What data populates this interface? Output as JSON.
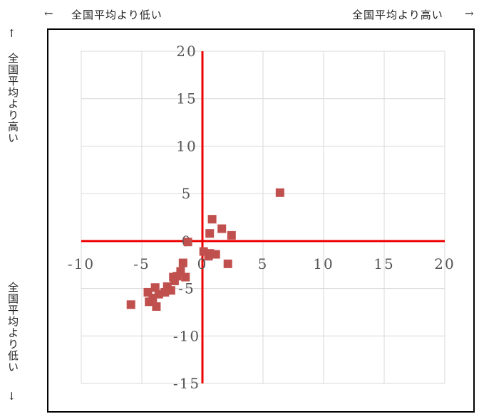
{
  "labels": {
    "left_arrow": "←",
    "top_left": "全国平均より低い",
    "top_right": "全国平均より高い",
    "right_arrow": "→",
    "up_arrow": "↑",
    "side_top": "全国平均より高い",
    "side_bottom": "全国平均より低い",
    "down_arrow": "↓"
  },
  "chart_data": {
    "type": "scatter",
    "title": "",
    "xlabel": "",
    "ylabel": "",
    "xlim": [
      -10,
      20
    ],
    "ylim": [
      -15,
      20
    ],
    "x_ticks": [
      -10,
      -5,
      0,
      5,
      10,
      15,
      20
    ],
    "y_ticks": [
      -15,
      -10,
      -5,
      0,
      5,
      10,
      15,
      20
    ],
    "grid": true,
    "axis_line_color": "#ee0000",
    "marker_color": "#c0504d",
    "points": [
      {
        "x": 6.4,
        "y": 5.1
      },
      {
        "x": 0.8,
        "y": 2.3
      },
      {
        "x": 1.6,
        "y": 1.3
      },
      {
        "x": 2.4,
        "y": 0.6
      },
      {
        "x": 0.6,
        "y": 0.8
      },
      {
        "x": -1.2,
        "y": -0.1
      },
      {
        "x": 0.1,
        "y": -1.1
      },
      {
        "x": 0.6,
        "y": -1.3
      },
      {
        "x": 1.1,
        "y": -1.4
      },
      {
        "x": 0.5,
        "y": -1.6
      },
      {
        "x": 2.1,
        "y": -2.4
      },
      {
        "x": -1.6,
        "y": -2.3
      },
      {
        "x": -1.8,
        "y": -3.2
      },
      {
        "x": -1.4,
        "y": -3.8
      },
      {
        "x": -2.1,
        "y": -3.7
      },
      {
        "x": -2.4,
        "y": -3.8
      },
      {
        "x": -2.3,
        "y": -4.2
      },
      {
        "x": -2.6,
        "y": -5.2
      },
      {
        "x": -2.9,
        "y": -4.8
      },
      {
        "x": -3.1,
        "y": -5.4
      },
      {
        "x": -3.6,
        "y": -5.6
      },
      {
        "x": -3.9,
        "y": -4.9
      },
      {
        "x": -4.1,
        "y": -6.0
      },
      {
        "x": -4.5,
        "y": -5.4
      },
      {
        "x": -4.4,
        "y": -6.4
      },
      {
        "x": -3.8,
        "y": -6.9
      },
      {
        "x": -5.9,
        "y": -6.7
      }
    ]
  }
}
